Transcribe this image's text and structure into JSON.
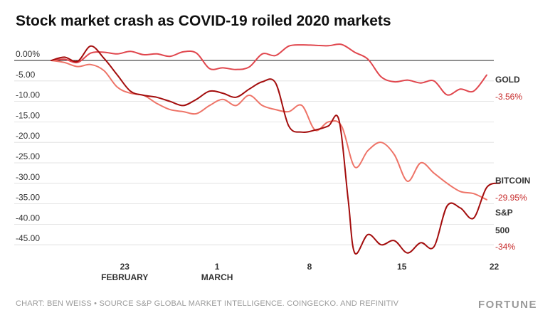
{
  "title": "Stock market crash as COVID-19 roiled 2020 markets",
  "footer": "CHART: BEN WEISS • SOURCE S&P GLOBAL MARKET INTELLIGENCE. COINGECKO. AND REFINITIV",
  "brand": "FORTUNE",
  "colors": {
    "gold": "#e0464d",
    "bitcoin": "#a30d0d",
    "sp": "#ee7468",
    "pct": "#c62828",
    "label": "#333333",
    "grid": "#dddddd",
    "zero": "#222222"
  },
  "chart_data": {
    "type": "line",
    "title": "Stock market crash as COVID-19 roiled 2020 markets",
    "xlabel": "",
    "ylabel": "",
    "xlim": [
      0,
      33
    ],
    "ylim": [
      -48,
      2
    ],
    "y_ticks": [
      {
        "value": 0,
        "label": "0.00%"
      },
      {
        "value": -5,
        "label": "-5.00"
      },
      {
        "value": -10,
        "label": "-10.00"
      },
      {
        "value": -15,
        "label": "-15.00"
      },
      {
        "value": -20,
        "label": "-20.00"
      },
      {
        "value": -25,
        "label": "-25.00"
      },
      {
        "value": -30,
        "label": "-30.00"
      },
      {
        "value": -35,
        "label": "-35.00"
      },
      {
        "value": -40,
        "label": "-40.00"
      },
      {
        "value": -45,
        "label": "-45.00"
      }
    ],
    "x_ticks": [
      {
        "x": 6,
        "day": "23",
        "month": "FEBRUARY"
      },
      {
        "x": 13,
        "day": "1",
        "month": "MARCH"
      },
      {
        "x": 20,
        "day": "8",
        "month": ""
      },
      {
        "x": 27,
        "day": "15",
        "month": ""
      },
      {
        "x": 34,
        "day": "22",
        "month": ""
      }
    ],
    "series": [
      {
        "name": "GOLD",
        "key": "gold",
        "end_label": "-3.56%",
        "points": [
          [
            0,
            0
          ],
          [
            1,
            0.3
          ],
          [
            2,
            -0.5
          ],
          [
            3,
            1.8
          ],
          [
            4,
            2.0
          ],
          [
            5,
            1.6
          ],
          [
            6,
            2.2
          ],
          [
            7,
            1.4
          ],
          [
            8,
            1.6
          ],
          [
            9,
            1.0
          ],
          [
            10,
            2.1
          ],
          [
            11,
            1.8
          ],
          [
            12,
            -2.0
          ],
          [
            13,
            -1.8
          ],
          [
            14,
            -2.2
          ],
          [
            15,
            -1.6
          ],
          [
            16,
            1.6
          ],
          [
            17,
            1.2
          ],
          [
            18,
            3.5
          ],
          [
            19,
            3.8
          ],
          [
            20,
            3.7
          ],
          [
            21,
            3.6
          ],
          [
            22,
            3.9
          ],
          [
            23,
            2.0
          ],
          [
            24,
            0.3
          ],
          [
            25,
            -4.0
          ],
          [
            26,
            -5.2
          ],
          [
            27,
            -4.8
          ],
          [
            28,
            -5.5
          ],
          [
            29,
            -5.0
          ],
          [
            30,
            -8.4
          ],
          [
            31,
            -7.0
          ],
          [
            32,
            -7.5
          ],
          [
            33,
            -3.56
          ]
        ]
      },
      {
        "name": "BITCOIN",
        "key": "bitcoin",
        "end_label": "-29.95%",
        "points": [
          [
            0,
            0
          ],
          [
            1,
            0.8
          ],
          [
            2,
            -0.2
          ],
          [
            3,
            3.5
          ],
          [
            4,
            0.5
          ],
          [
            5,
            -3.5
          ],
          [
            6,
            -7.5
          ],
          [
            7,
            -8.5
          ],
          [
            8,
            -9.0
          ],
          [
            9,
            -10.0
          ],
          [
            10,
            -11.0
          ],
          [
            11,
            -9.5
          ],
          [
            12,
            -7.5
          ],
          [
            13,
            -8.0
          ],
          [
            14,
            -9.0
          ],
          [
            15,
            -7.0
          ],
          [
            16,
            -5.2
          ],
          [
            17,
            -5.5
          ],
          [
            18,
            -16.0
          ],
          [
            19,
            -17.5
          ],
          [
            20,
            -17.0
          ],
          [
            21,
            -16.0
          ],
          [
            21.8,
            -14.5
          ],
          [
            22.5,
            -34
          ],
          [
            23,
            -47.0
          ],
          [
            24,
            -42.5
          ],
          [
            25,
            -45.0
          ],
          [
            26,
            -44.0
          ],
          [
            27,
            -47.0
          ],
          [
            28,
            -44.5
          ],
          [
            29,
            -45.5
          ],
          [
            30,
            -35.5
          ],
          [
            31,
            -36.0
          ],
          [
            32,
            -38.5
          ],
          [
            33,
            -31.0
          ],
          [
            34,
            -29.95
          ]
        ]
      },
      {
        "name": "S&P 500",
        "key": "sp",
        "end_label": "-34%",
        "points": [
          [
            0,
            0
          ],
          [
            1,
            -0.5
          ],
          [
            2,
            -1.5
          ],
          [
            3,
            -1.0
          ],
          [
            4,
            -2.5
          ],
          [
            5,
            -6.5
          ],
          [
            6,
            -8.0
          ],
          [
            7,
            -8.5
          ],
          [
            8,
            -10.5
          ],
          [
            9,
            -12.0
          ],
          [
            10,
            -12.5
          ],
          [
            11,
            -13.0
          ],
          [
            12,
            -11.0
          ],
          [
            13,
            -9.5
          ],
          [
            14,
            -11.0
          ],
          [
            15,
            -8.5
          ],
          [
            16,
            -11.0
          ],
          [
            17,
            -12.0
          ],
          [
            18,
            -12.5
          ],
          [
            19,
            -11.0
          ],
          [
            20,
            -17.0
          ],
          [
            21,
            -15.0
          ],
          [
            22,
            -16.0
          ],
          [
            23,
            -26.0
          ],
          [
            24,
            -22.0
          ],
          [
            25,
            -20.0
          ],
          [
            26,
            -23.0
          ],
          [
            27,
            -29.5
          ],
          [
            28,
            -25.0
          ],
          [
            29,
            -27.5
          ],
          [
            30,
            -30.0
          ],
          [
            31,
            -32.0
          ],
          [
            32,
            -32.5
          ],
          [
            33,
            -34.0
          ]
        ]
      }
    ]
  }
}
